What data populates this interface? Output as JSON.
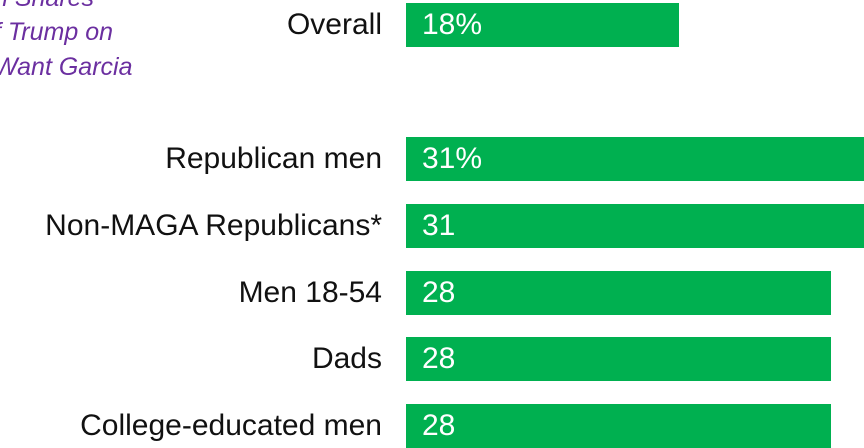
{
  "link": {
    "lines": [
      "n Shares",
      "f Trump on",
      " Want Garcia"
    ],
    "color": "#6b2fa0"
  },
  "colors": {
    "bar": "#00b050",
    "value_text": "#ffffff"
  },
  "chart_data": {
    "type": "bar",
    "orientation": "horizontal",
    "categories": [
      "Overall",
      "Republican men",
      "Non-MAGA Republicans*",
      "Men 18-54",
      "Dads",
      "College-educated men"
    ],
    "values": [
      18,
      31,
      31,
      28,
      28,
      28
    ],
    "value_labels": [
      "18%",
      "31%",
      "31",
      "28",
      "28",
      "28"
    ],
    "title": "",
    "xlabel": "",
    "ylabel": "",
    "grid": false,
    "legend": "none"
  }
}
